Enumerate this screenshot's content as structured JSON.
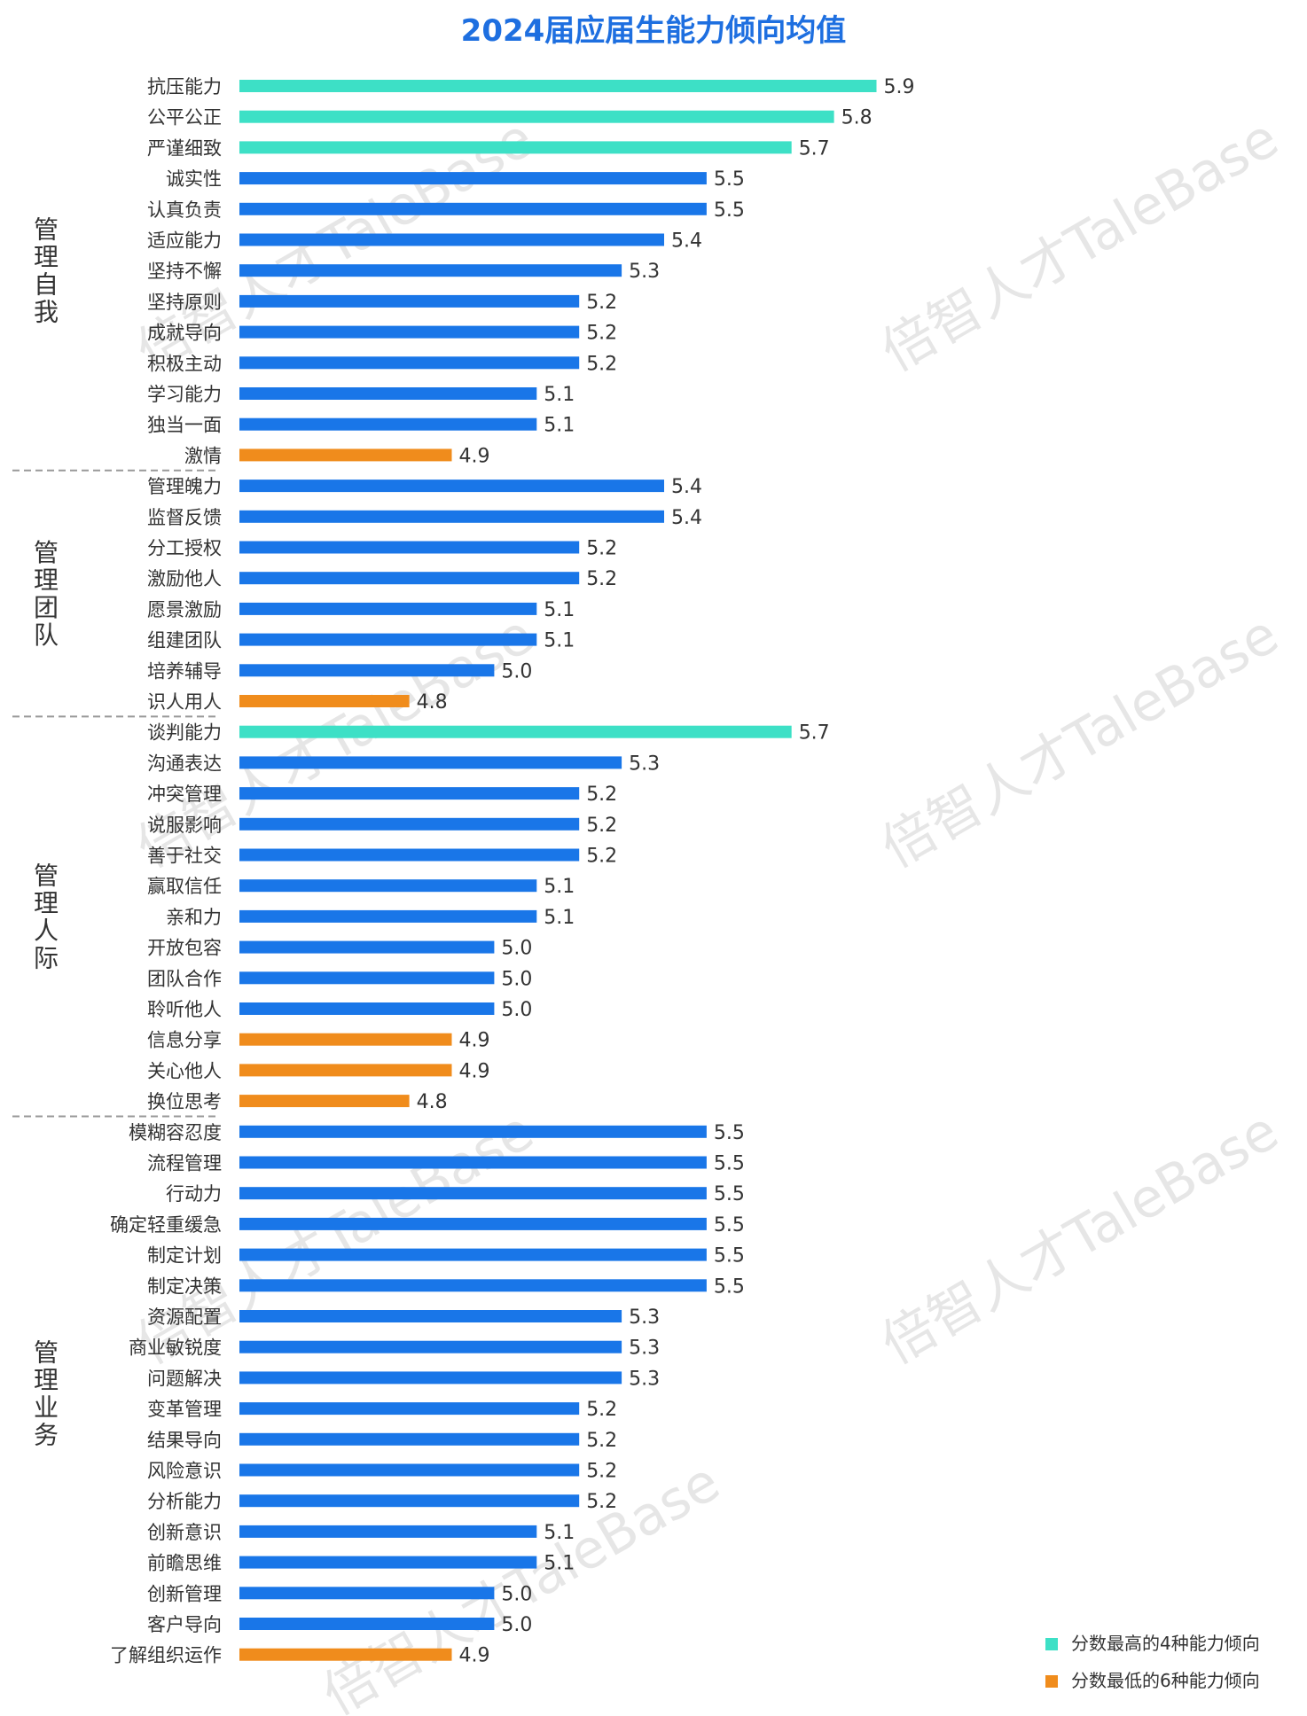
{
  "chart_data": {
    "type": "bar",
    "orientation": "horizontal",
    "title": "2024届应届生能力倾向均值",
    "colors": {
      "top": "#3de0c6",
      "mid": "#1976e8",
      "low": "#f08c1c",
      "title": "#1e6fe0"
    },
    "legend": {
      "placement": "bottom-right",
      "items": [
        {
          "key": "top",
          "label": "分数最高的4种能力倾向"
        },
        {
          "key": "low",
          "label": "分数最低的6种能力倾向"
        }
      ]
    },
    "groups": [
      {
        "label": "管理自我",
        "bars": [
          {
            "label": "抗压能力",
            "value": 5.9,
            "value_label": "5.9",
            "kind": "top"
          },
          {
            "label": "公平公正",
            "value": 5.8,
            "value_label": "5.8",
            "kind": "top"
          },
          {
            "label": "严谨细致",
            "value": 5.7,
            "value_label": "5.7",
            "kind": "top"
          },
          {
            "label": "诚实性",
            "value": 5.5,
            "value_label": "5.5",
            "kind": "mid"
          },
          {
            "label": "认真负责",
            "value": 5.5,
            "value_label": "5.5",
            "kind": "mid"
          },
          {
            "label": "适应能力",
            "value": 5.4,
            "value_label": "5.4",
            "kind": "mid"
          },
          {
            "label": "坚持不懈",
            "value": 5.3,
            "value_label": "5.3",
            "kind": "mid"
          },
          {
            "label": "坚持原则",
            "value": 5.2,
            "value_label": "5.2",
            "kind": "mid"
          },
          {
            "label": "成就导向",
            "value": 5.2,
            "value_label": "5.2",
            "kind": "mid"
          },
          {
            "label": "积极主动",
            "value": 5.2,
            "value_label": "5.2",
            "kind": "mid"
          },
          {
            "label": "学习能力",
            "value": 5.1,
            "value_label": "5.1",
            "kind": "mid"
          },
          {
            "label": "独当一面",
            "value": 5.1,
            "value_label": "5.1",
            "kind": "mid"
          },
          {
            "label": "激情",
            "value": 4.9,
            "value_label": "4.9",
            "kind": "low"
          }
        ]
      },
      {
        "label": "管理团队",
        "bars": [
          {
            "label": "管理魄力",
            "value": 5.4,
            "value_label": "5.4",
            "kind": "mid"
          },
          {
            "label": "监督反馈",
            "value": 5.4,
            "value_label": "5.4",
            "kind": "mid"
          },
          {
            "label": "分工授权",
            "value": 5.2,
            "value_label": "5.2",
            "kind": "mid"
          },
          {
            "label": "激励他人",
            "value": 5.2,
            "value_label": "5.2",
            "kind": "mid"
          },
          {
            "label": "愿景激励",
            "value": 5.1,
            "value_label": "5.1",
            "kind": "mid"
          },
          {
            "label": "组建团队",
            "value": 5.1,
            "value_label": "5.1",
            "kind": "mid"
          },
          {
            "label": "培养辅导",
            "value": 5.0,
            "value_label": "5.0",
            "kind": "mid"
          },
          {
            "label": "识人用人",
            "value": 4.8,
            "value_label": "4.8",
            "kind": "low"
          }
        ]
      },
      {
        "label": "管理人际",
        "bars": [
          {
            "label": "谈判能力",
            "value": 5.7,
            "value_label": "5.7",
            "kind": "top"
          },
          {
            "label": "沟通表达",
            "value": 5.3,
            "value_label": "5.3",
            "kind": "mid"
          },
          {
            "label": "冲突管理",
            "value": 5.2,
            "value_label": "5.2",
            "kind": "mid"
          },
          {
            "label": "说服影响",
            "value": 5.2,
            "value_label": "5.2",
            "kind": "mid"
          },
          {
            "label": "善于社交",
            "value": 5.2,
            "value_label": "5.2",
            "kind": "mid"
          },
          {
            "label": "赢取信任",
            "value": 5.1,
            "value_label": "5.1",
            "kind": "mid"
          },
          {
            "label": "亲和力",
            "value": 5.1,
            "value_label": "5.1",
            "kind": "mid"
          },
          {
            "label": "开放包容",
            "value": 5.0,
            "value_label": "5.0",
            "kind": "mid"
          },
          {
            "label": "团队合作",
            "value": 5.0,
            "value_label": "5.0",
            "kind": "mid"
          },
          {
            "label": "聆听他人",
            "value": 5.0,
            "value_label": "5.0",
            "kind": "mid"
          },
          {
            "label": "信息分享",
            "value": 4.9,
            "value_label": "4.9",
            "kind": "low"
          },
          {
            "label": "关心他人",
            "value": 4.9,
            "value_label": "4.9",
            "kind": "low"
          },
          {
            "label": "换位思考",
            "value": 4.8,
            "value_label": "4.8",
            "kind": "low"
          }
        ]
      },
      {
        "label": "管理业务",
        "bars": [
          {
            "label": "模糊容忍度",
            "value": 5.5,
            "value_label": "5.5",
            "kind": "mid"
          },
          {
            "label": "流程管理",
            "value": 5.5,
            "value_label": "5.5",
            "kind": "mid"
          },
          {
            "label": "行动力",
            "value": 5.5,
            "value_label": "5.5",
            "kind": "mid"
          },
          {
            "label": "确定轻重缓急",
            "value": 5.5,
            "value_label": "5.5",
            "kind": "mid"
          },
          {
            "label": "制定计划",
            "value": 5.5,
            "value_label": "5.5",
            "kind": "mid"
          },
          {
            "label": "制定决策",
            "value": 5.5,
            "value_label": "5.5",
            "kind": "mid"
          },
          {
            "label": "资源配置",
            "value": 5.3,
            "value_label": "5.3",
            "kind": "mid"
          },
          {
            "label": "商业敏锐度",
            "value": 5.3,
            "value_label": "5.3",
            "kind": "mid"
          },
          {
            "label": "问题解决",
            "value": 5.3,
            "value_label": "5.3",
            "kind": "mid"
          },
          {
            "label": "变革管理",
            "value": 5.2,
            "value_label": "5.2",
            "kind": "mid"
          },
          {
            "label": "结果导向",
            "value": 5.2,
            "value_label": "5.2",
            "kind": "mid"
          },
          {
            "label": "风险意识",
            "value": 5.2,
            "value_label": "5.2",
            "kind": "mid"
          },
          {
            "label": "分析能力",
            "value": 5.2,
            "value_label": "5.2",
            "kind": "mid"
          },
          {
            "label": "创新意识",
            "value": 5.1,
            "value_label": "5.1",
            "kind": "mid"
          },
          {
            "label": "前瞻思维",
            "value": 5.1,
            "value_label": "5.1",
            "kind": "mid"
          },
          {
            "label": "创新管理",
            "value": 5.0,
            "value_label": "5.0",
            "kind": "mid"
          },
          {
            "label": "客户导向",
            "value": 5.0,
            "value_label": "5.0",
            "kind": "mid"
          },
          {
            "label": "了解组织运作",
            "value": 4.9,
            "value_label": "4.9",
            "kind": "low"
          }
        ]
      }
    ]
  },
  "watermark": {
    "text": "倍智人才TaleBase"
  }
}
